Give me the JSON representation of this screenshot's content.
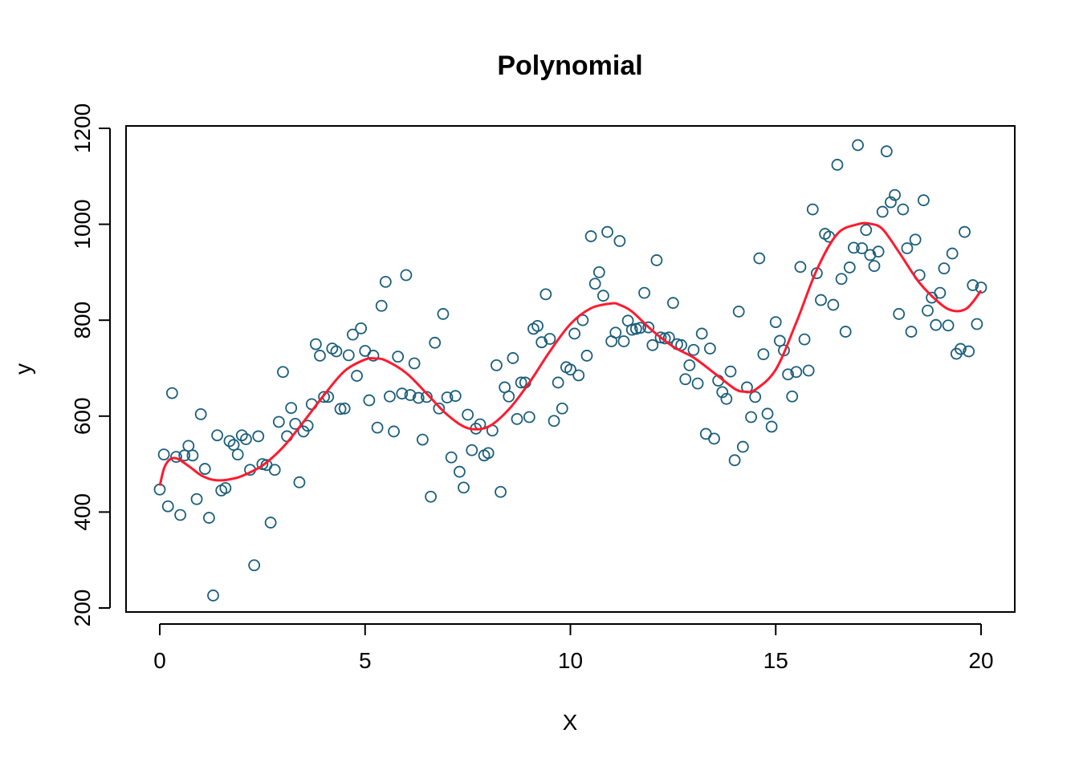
{
  "chart_data": {
    "type": "scatter",
    "title": "Polynomial",
    "xlabel": "X",
    "ylabel": "y",
    "xlim": [
      0,
      20
    ],
    "ylim": [
      200,
      1200
    ],
    "xticks": [
      0,
      5,
      10,
      15,
      20
    ],
    "yticks": [
      200,
      400,
      600,
      800,
      1000,
      1200
    ],
    "grid": false,
    "legend": "none",
    "point_color": "#1a5e7a",
    "fit_color": "#ff1a2e",
    "points": {
      "x": [
        0.0,
        0.1,
        0.2,
        0.3,
        0.4,
        0.5,
        0.6,
        0.7,
        0.8,
        0.9,
        1.0,
        1.1,
        1.2,
        1.3,
        1.4,
        1.5,
        1.6,
        1.7,
        1.8,
        1.9,
        2.0,
        2.1,
        2.2,
        2.3,
        2.4,
        2.5,
        2.6,
        2.7,
        2.8,
        2.9,
        3.0,
        3.1,
        3.2,
        3.3,
        3.4,
        3.5,
        3.6,
        3.7,
        3.8,
        3.9,
        4.0,
        4.1,
        4.2,
        4.3,
        4.4,
        4.5,
        4.6,
        4.7,
        4.8,
        4.9,
        5.0,
        5.1,
        5.2,
        5.3,
        5.4,
        5.5,
        5.6,
        5.7,
        5.8,
        5.9,
        6.0,
        6.1,
        6.2,
        6.3,
        6.4,
        6.5,
        6.6,
        6.7,
        6.8,
        6.9,
        7.0,
        7.1,
        7.2,
        7.3,
        7.4,
        7.5,
        7.6,
        7.7,
        7.8,
        7.9,
        8.0,
        8.1,
        8.2,
        8.3,
        8.4,
        8.5,
        8.6,
        8.7,
        8.8,
        8.9,
        9.0,
        9.1,
        9.2,
        9.3,
        9.4,
        9.5,
        9.6,
        9.7,
        9.8,
        9.9,
        10.0,
        10.1,
        10.2,
        10.3,
        10.4,
        10.5,
        10.6,
        10.7,
        10.8,
        10.9,
        11.0,
        11.1,
        11.2,
        11.3,
        11.4,
        11.5,
        11.6,
        11.7,
        11.8,
        11.9,
        12.0,
        12.1,
        12.2,
        12.3,
        12.4,
        12.5,
        12.6,
        12.7,
        12.8,
        12.9,
        13.0,
        13.1,
        13.2,
        13.3,
        13.4,
        13.5,
        13.6,
        13.7,
        13.8,
        13.9,
        14.0,
        14.1,
        14.2,
        14.3,
        14.4,
        14.5,
        14.6,
        14.7,
        14.8,
        14.9,
        15.0,
        15.1,
        15.2,
        15.3,
        15.4,
        15.5,
        15.6,
        15.7,
        15.8,
        15.9,
        16.0,
        16.1,
        16.2,
        16.3,
        16.4,
        16.5,
        16.6,
        16.7,
        16.8,
        16.9,
        17.0,
        17.1,
        17.2,
        17.3,
        17.4,
        17.5,
        17.6,
        17.7,
        17.8,
        17.9,
        18.0,
        18.1,
        18.2,
        18.3,
        18.4,
        18.5,
        18.6,
        18.7,
        18.8,
        18.9,
        19.0,
        19.1,
        19.2,
        19.3,
        19.4,
        19.5,
        19.6,
        19.7,
        19.8,
        19.9,
        20.0
      ],
      "y": [
        447,
        520,
        412,
        648,
        515,
        394,
        518,
        538,
        518,
        427,
        604,
        490,
        388,
        226,
        560,
        445,
        450,
        548,
        540,
        520,
        560,
        552,
        488,
        289,
        558,
        500,
        498,
        378,
        488,
        588,
        692,
        558,
        617,
        584,
        462,
        568,
        580,
        625,
        750,
        726,
        640,
        640,
        741,
        735,
        615,
        616,
        727,
        770,
        684,
        783,
        736,
        633,
        726,
        576,
        830,
        880,
        641,
        568,
        724,
        647,
        894,
        644,
        710,
        638,
        551,
        640,
        432,
        753,
        616,
        813,
        639,
        514,
        642,
        484,
        451,
        603,
        529,
        574,
        583,
        518,
        523,
        570,
        706,
        442,
        660,
        641,
        721,
        594,
        670,
        670,
        598,
        782,
        788,
        754,
        854,
        761,
        590,
        670,
        616,
        702,
        697,
        772,
        685,
        800,
        726,
        975,
        876,
        900,
        851,
        984,
        756,
        774,
        965,
        756,
        799,
        780,
        782,
        784,
        857,
        785,
        748,
        925,
        764,
        762,
        764,
        836,
        750,
        748,
        677,
        706,
        738,
        668,
        772,
        563,
        741,
        553,
        674,
        650,
        636,
        693,
        508,
        818,
        536,
        660,
        598,
        640,
        929,
        729,
        605,
        578,
        796,
        757,
        737,
        687,
        641,
        692,
        911,
        760,
        695,
        1031,
        898,
        842,
        980,
        974,
        832,
        1124,
        886,
        776,
        910,
        951,
        1165,
        950,
        988,
        936,
        913,
        943,
        1026,
        1152,
        1046,
        1061,
        813,
        1031,
        950,
        776,
        968,
        894,
        1050,
        820,
        847,
        790,
        857,
        908,
        789,
        939,
        730,
        740,
        984,
        735,
        873,
        792,
        868
      ]
    },
    "fit": {
      "label": "",
      "x": [
        0.0,
        0.1,
        0.2,
        0.3,
        0.4,
        0.5,
        0.75,
        1.0,
        1.25,
        1.5,
        1.75,
        2.0,
        2.5,
        3.0,
        3.5,
        4.0,
        4.5,
        5.0,
        5.25,
        5.5,
        6.0,
        6.5,
        7.0,
        7.5,
        8.0,
        8.5,
        9.0,
        9.5,
        10.0,
        10.5,
        11.0,
        11.2,
        11.5,
        12.0,
        12.5,
        13.0,
        13.5,
        14.0,
        14.25,
        14.5,
        15.0,
        15.5,
        16.0,
        16.5,
        17.0,
        17.3,
        17.6,
        18.0,
        18.5,
        19.0,
        19.3,
        19.6,
        19.8,
        20.0
      ],
      "y": [
        455,
        490,
        506,
        512,
        512,
        508,
        493,
        477,
        468,
        466,
        469,
        475,
        497,
        535,
        588,
        644,
        694,
        718,
        720,
        716,
        690,
        647,
        603,
        575,
        578,
        614,
        670,
        735,
        792,
        825,
        835,
        832,
        818,
        778,
        745,
        722,
        690,
        657,
        651,
        655,
        697,
        795,
        905,
        980,
        1000,
        1001,
        990,
        942,
        878,
        835,
        820,
        822,
        838,
        862
      ]
    }
  }
}
